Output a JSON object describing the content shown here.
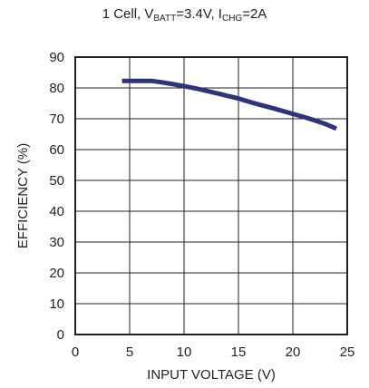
{
  "title": {
    "prefix": "1 Cell, V",
    "vbatt_sub": "BATT",
    "vbatt_value": "=3.4V, I",
    "ichg_sub": "CHG",
    "ichg_value": "=2A"
  },
  "chart_data": {
    "type": "line",
    "xlabel": "INPUT VOLTAGE (V)",
    "ylabel": "EFFICIENCY (%)",
    "xlim": [
      0,
      25
    ],
    "ylim": [
      0,
      90
    ],
    "xticks": [
      "0",
      "5",
      "10",
      "15",
      "20",
      "25"
    ],
    "yticks": [
      "0",
      "10",
      "20",
      "30",
      "40",
      "50",
      "60",
      "70",
      "80",
      "90"
    ],
    "grid": true,
    "line_color": "#2e3478",
    "series": [
      {
        "x": [
          4.3,
          5,
          6,
          7,
          8,
          9,
          10,
          11,
          12,
          13,
          14,
          15,
          16,
          17,
          18,
          19,
          20,
          21,
          22,
          23,
          24
        ],
        "y": [
          82.3,
          82.3,
          82.3,
          82.3,
          81.8,
          81.2,
          80.6,
          79.9,
          79.1,
          78.3,
          77.4,
          76.6,
          75.5,
          74.5,
          73.6,
          72.6,
          71.6,
          70.6,
          69.5,
          68.3,
          66.8
        ]
      }
    ]
  }
}
